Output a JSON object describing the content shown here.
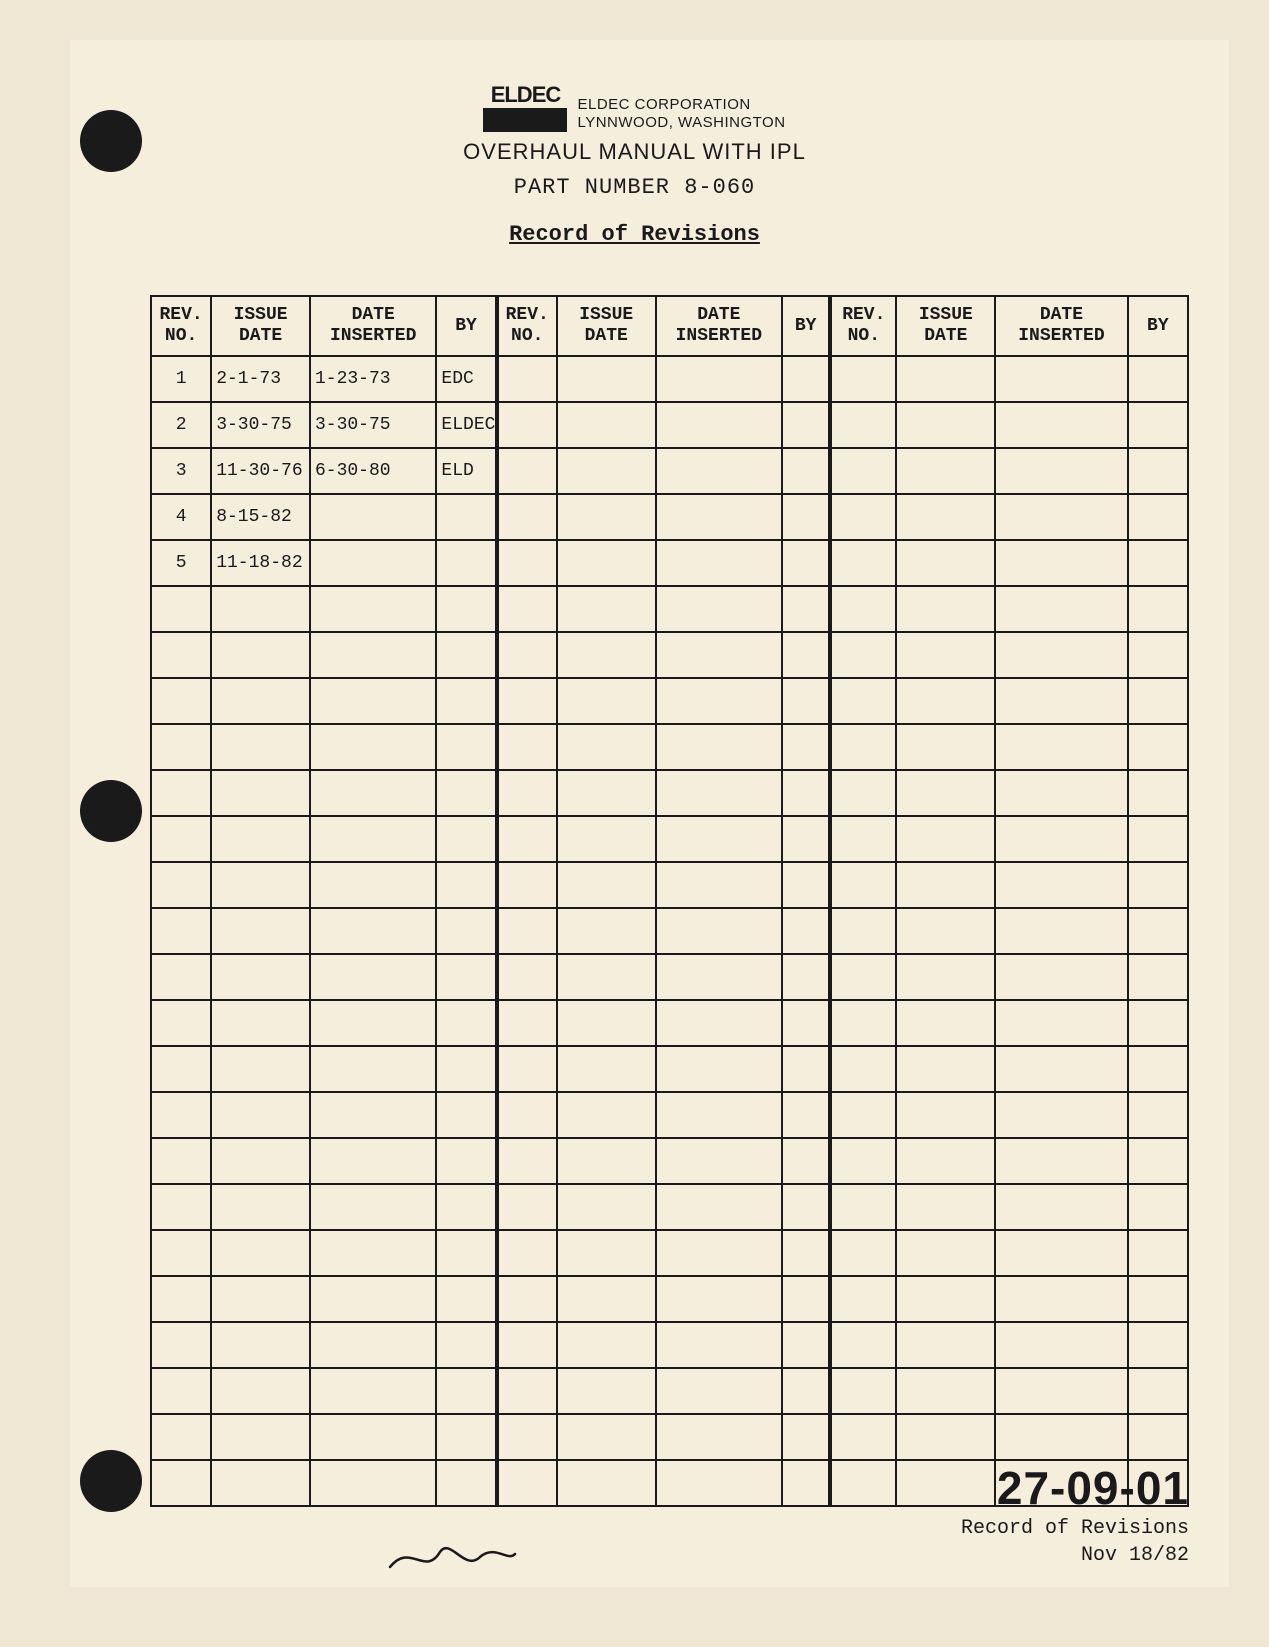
{
  "company": {
    "logo_text": "ELDEC",
    "name": "ELDEC CORPORATION",
    "location": "LYNNWOOD, WASHINGTON"
  },
  "titles": {
    "line1": "OVERHAUL MANUAL WITH IPL",
    "line2": "PART NUMBER 8-060",
    "line3": "Record of Revisions"
  },
  "table": {
    "headers": {
      "rev": "REV.\nNO.",
      "issue": "ISSUE\nDATE",
      "inserted": "DATE\nINSERTED",
      "by": "BY"
    },
    "total_rows": 25,
    "rows": [
      {
        "rev": "1",
        "issue": "2-1-73",
        "inserted": "1-23-73",
        "by": "EDC"
      },
      {
        "rev": "2",
        "issue": "3-30-75",
        "inserted": "3-30-75",
        "by": "ELDEC"
      },
      {
        "rev": "3",
        "issue": "11-30-76",
        "inserted": "6-30-80",
        "by": "ELD"
      },
      {
        "rev": "4",
        "issue": "8-15-82",
        "inserted": "",
        "by": ""
      },
      {
        "rev": "5",
        "issue": "11-18-82",
        "inserted": "",
        "by": ""
      }
    ]
  },
  "footer": {
    "code": "27-09-01",
    "label": "Record of Revisions",
    "date": "Nov 18/82"
  },
  "colors": {
    "page_bg": "#efe6d4",
    "paper_bg": "#f5eedd",
    "ink": "#1a1a1a"
  }
}
